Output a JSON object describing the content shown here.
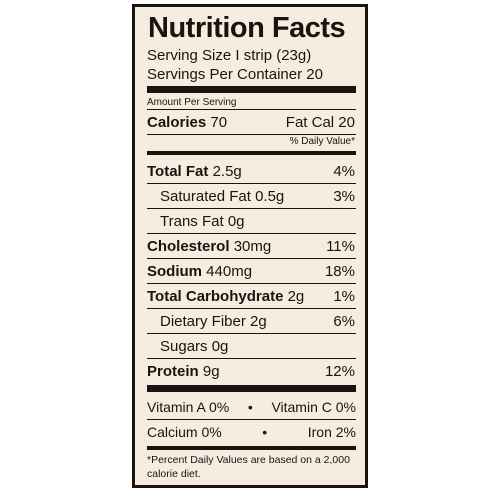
{
  "label": {
    "title": "Nutrition Facts",
    "serving_size": "Serving Size I strip (23g)",
    "servings_per_container": "Servings Per Container 20",
    "amount_per_serving": "Amount Per Serving",
    "calories_label": "Calories",
    "calories_value": "70",
    "fat_cal": "Fat Cal 20",
    "daily_value_header": "% Daily Value*",
    "nutrients": [
      {
        "label": "Total Fat",
        "amount": "2.5g",
        "dv": "4%"
      },
      {
        "label": "Saturated Fat",
        "amount": "0.5g",
        "dv": "3%"
      },
      {
        "label": "Trans Fat",
        "amount": "0g",
        "dv": ""
      },
      {
        "label": "Cholesterol",
        "amount": "30mg",
        "dv": "11%"
      },
      {
        "label": "Sodium",
        "amount": "440mg",
        "dv": "18%"
      },
      {
        "label": "Total Carbohydrate",
        "amount": "2g",
        "dv": "1%"
      },
      {
        "label": "Dietary Fiber",
        "amount": "2g",
        "dv": "6%"
      },
      {
        "label": "Sugars",
        "amount": "0g",
        "dv": ""
      },
      {
        "label": "Protein",
        "amount": "9g",
        "dv": "12%"
      }
    ],
    "vitamins": {
      "vitamin_a": "Vitamin A 0%",
      "vitamin_c": "Vitamin C 0%",
      "calcium": "Calcium 0%",
      "iron": "Iron 2%",
      "separator": "•"
    },
    "footnote": "*Percent Daily Values are based on a 2,000 calorie diet."
  }
}
